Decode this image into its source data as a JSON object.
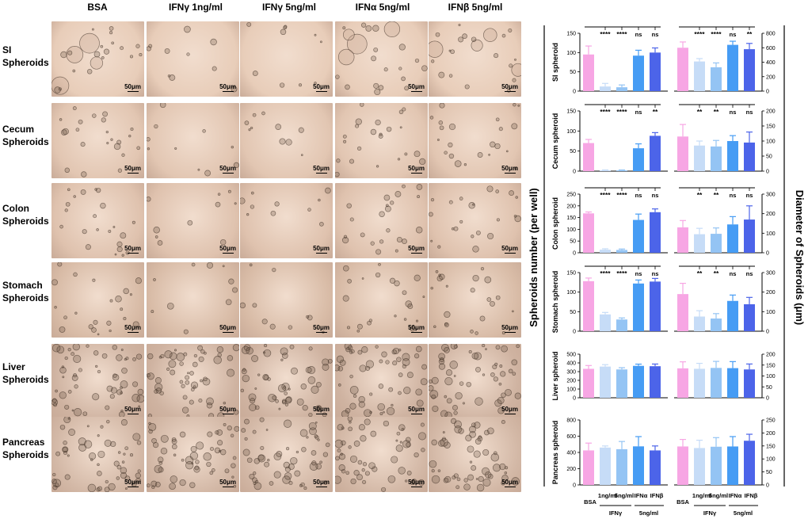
{
  "figure": {
    "columns": [
      "BSA",
      "IFNγ 1ng/ml",
      "IFNγ 5ng/ml",
      "IFNα 5ng/ml",
      "IFNβ 5ng/ml"
    ],
    "rows": [
      {
        "line1": "SI",
        "line2": "Spheroids"
      },
      {
        "line1": "Cecum",
        "line2": "Spheroids"
      },
      {
        "line1": "Colon",
        "line2": "Spheroids"
      },
      {
        "line1": "Stomach",
        "line2": "Spheroids"
      },
      {
        "line1": "Liver",
        "line2": "Spheroids"
      },
      {
        "line1": "Pancreas",
        "line2": "Spheroids"
      }
    ],
    "scale_bar": "50μm",
    "left_axis_title": "Spheroids number (per well)",
    "right_axis_title": "Diameter of Spheroids (μm)",
    "x_labels": {
      "bsa": "BSA",
      "ifng1": "1ng/ml",
      "ifng5": "5ng/ml",
      "ifna": "IFNα",
      "ifnb": "IFNβ",
      "ifng_group": "IFNγ",
      "five_group": "5ng/ml"
    },
    "colors": [
      "#f7a6e4",
      "#c6dcf7",
      "#94c4f4",
      "#469cf4",
      "#4c64e9"
    ]
  },
  "chart_data": [
    {
      "type": "bar",
      "panel": "number",
      "ylabel": "SI spheroid",
      "categories": [
        "BSA",
        "IFNγ 1ng/ml",
        "IFNγ 5ng/ml",
        "IFNα 5ng/ml",
        "IFNβ 5ng/ml"
      ],
      "values": [
        95,
        12,
        10,
        92,
        100
      ],
      "errors": [
        22,
        8,
        6,
        14,
        12
      ],
      "ylim": [
        0,
        150
      ],
      "ticks": [
        0,
        50,
        100,
        150
      ],
      "sig": [
        "",
        "****",
        "****",
        "ns",
        "ns"
      ]
    },
    {
      "type": "bar",
      "panel": "number",
      "ylabel": "Cecum spheroid",
      "categories": [
        "BSA",
        "IFNγ 1ng/ml",
        "IFNγ 5ng/ml",
        "IFNα 5ng/ml",
        "IFNβ 5ng/ml"
      ],
      "values": [
        70,
        2,
        2,
        57,
        88
      ],
      "errors": [
        9,
        1,
        1,
        11,
        8
      ],
      "ylim": [
        0,
        150
      ],
      "ticks": [
        0,
        50,
        100,
        150
      ],
      "sig": [
        "",
        "****",
        "****",
        "ns",
        "**"
      ]
    },
    {
      "type": "bar",
      "panel": "number",
      "ylabel": "Colon spheroid",
      "categories": [
        "BSA",
        "IFNγ 1ng/ml",
        "IFNγ 5ng/ml",
        "IFNα 5ng/ml",
        "IFNβ 5ng/ml"
      ],
      "values": [
        168,
        13,
        12,
        140,
        173
      ],
      "errors": [
        6,
        4,
        4,
        25,
        14
      ],
      "ylim": [
        0,
        250
      ],
      "ticks": [
        0,
        50,
        100,
        150,
        200,
        250
      ],
      "sig": [
        "",
        "****",
        "****",
        "ns",
        "ns"
      ]
    },
    {
      "type": "bar",
      "panel": "number",
      "ylabel": "Stomach spheroid",
      "categories": [
        "BSA",
        "IFNγ 1ng/ml",
        "IFNγ 5ng/ml",
        "IFNα 5ng/ml",
        "IFNβ 5ng/ml"
      ],
      "values": [
        128,
        43,
        30,
        122,
        127
      ],
      "errors": [
        8,
        5,
        4,
        9,
        8
      ],
      "ylim": [
        0,
        150
      ],
      "ticks": [
        0,
        50,
        100,
        150
      ],
      "sig": [
        "",
        "****",
        "****",
        "ns",
        "ns"
      ]
    },
    {
      "type": "bar",
      "panel": "number",
      "ylabel": "Liver spheroid",
      "categories": [
        "BSA",
        "IFNγ 1ng/ml",
        "IFNγ 5ng/ml",
        "IFNα 5ng/ml",
        "IFNβ 5ng/ml"
      ],
      "values": [
        332,
        358,
        325,
        366,
        362
      ],
      "errors": [
        38,
        22,
        20,
        20,
        25
      ],
      "ylim": [
        0,
        500
      ],
      "ticks": [
        0,
        100,
        200,
        300,
        400,
        500
      ],
      "sig": []
    },
    {
      "type": "bar",
      "panel": "number",
      "ylabel": "Pancreas spheroid",
      "categories": [
        "BSA",
        "IFNγ 1ng/ml",
        "IFNγ 5ng/ml",
        "IFNα 5ng/ml",
        "IFNβ 5ng/ml"
      ],
      "values": [
        425,
        460,
        440,
        475,
        425
      ],
      "errors": [
        90,
        20,
        95,
        120,
        55
      ],
      "ylim": [
        0,
        800
      ],
      "ticks": [
        0,
        200,
        400,
        600,
        800
      ],
      "sig": []
    },
    {
      "type": "bar",
      "panel": "diameter",
      "categories": [
        "BSA",
        "IFNγ 1ng/ml",
        "IFNγ 5ng/ml",
        "IFNα 5ng/ml",
        "IFNβ 5ng/ml"
      ],
      "values": [
        600,
        410,
        330,
        640,
        580
      ],
      "errors": [
        80,
        40,
        60,
        50,
        80
      ],
      "ylim": [
        0,
        800
      ],
      "ticks": [
        0,
        200,
        400,
        600,
        800
      ],
      "sig": [
        "",
        "****",
        "****",
        "ns",
        "**"
      ]
    },
    {
      "type": "bar",
      "panel": "diameter",
      "categories": [
        "BSA",
        "IFNγ 1ng/ml",
        "IFNγ 5ng/ml",
        "IFNα 5ng/ml",
        "IFNβ 5ng/ml"
      ],
      "values": [
        115,
        85,
        82,
        100,
        95
      ],
      "errors": [
        40,
        15,
        20,
        18,
        35
      ],
      "ylim": [
        0,
        200
      ],
      "ticks": [
        0,
        50,
        100,
        150,
        200
      ],
      "sig": [
        "",
        "**",
        "**",
        "ns",
        "ns"
      ]
    },
    {
      "type": "bar",
      "panel": "diameter",
      "categories": [
        "BSA",
        "IFNγ 1ng/ml",
        "IFNγ 5ng/ml",
        "IFNα 5ng/ml",
        "IFNβ 5ng/ml"
      ],
      "values": [
        130,
        95,
        97,
        145,
        170
      ],
      "errors": [
        35,
        30,
        30,
        40,
        70
      ],
      "ylim": [
        0,
        300
      ],
      "ticks": [
        0,
        100,
        200,
        300
      ],
      "sig": [
        "",
        "**",
        "**",
        "ns",
        "ns"
      ]
    },
    {
      "type": "bar",
      "panel": "diameter",
      "categories": [
        "BSA",
        "IFNγ 1ng/ml",
        "IFNγ 5ng/ml",
        "IFNα 5ng/ml",
        "IFNβ 5ng/ml"
      ],
      "values": [
        190,
        75,
        65,
        155,
        138
      ],
      "errors": [
        55,
        30,
        25,
        30,
        35
      ],
      "ylim": [
        0,
        300
      ],
      "ticks": [
        0,
        100,
        200,
        300
      ],
      "sig": [
        "",
        "**",
        "**",
        "ns",
        "ns"
      ]
    },
    {
      "type": "bar",
      "panel": "diameter",
      "categories": [
        "BSA",
        "IFNγ 1ng/ml",
        "IFNγ 5ng/ml",
        "IFNα 5ng/ml",
        "IFNβ 5ng/ml"
      ],
      "values": [
        135,
        133,
        137,
        136,
        130
      ],
      "errors": [
        30,
        25,
        30,
        30,
        25
      ],
      "ylim": [
        0,
        200
      ],
      "ticks": [
        0,
        50,
        100,
        150,
        200
      ],
      "sig": []
    },
    {
      "type": "bar",
      "panel": "diameter",
      "categories": [
        "BSA",
        "IFNγ 1ng/ml",
        "IFNγ 5ng/ml",
        "IFNα 5ng/ml",
        "IFNβ 5ng/ml"
      ],
      "values": [
        148,
        142,
        147,
        148,
        170
      ],
      "errors": [
        27,
        30,
        35,
        38,
        25
      ],
      "ylim": [
        0,
        250
      ],
      "ticks": [
        0,
        50,
        100,
        150,
        200,
        250
      ],
      "sig": []
    }
  ]
}
